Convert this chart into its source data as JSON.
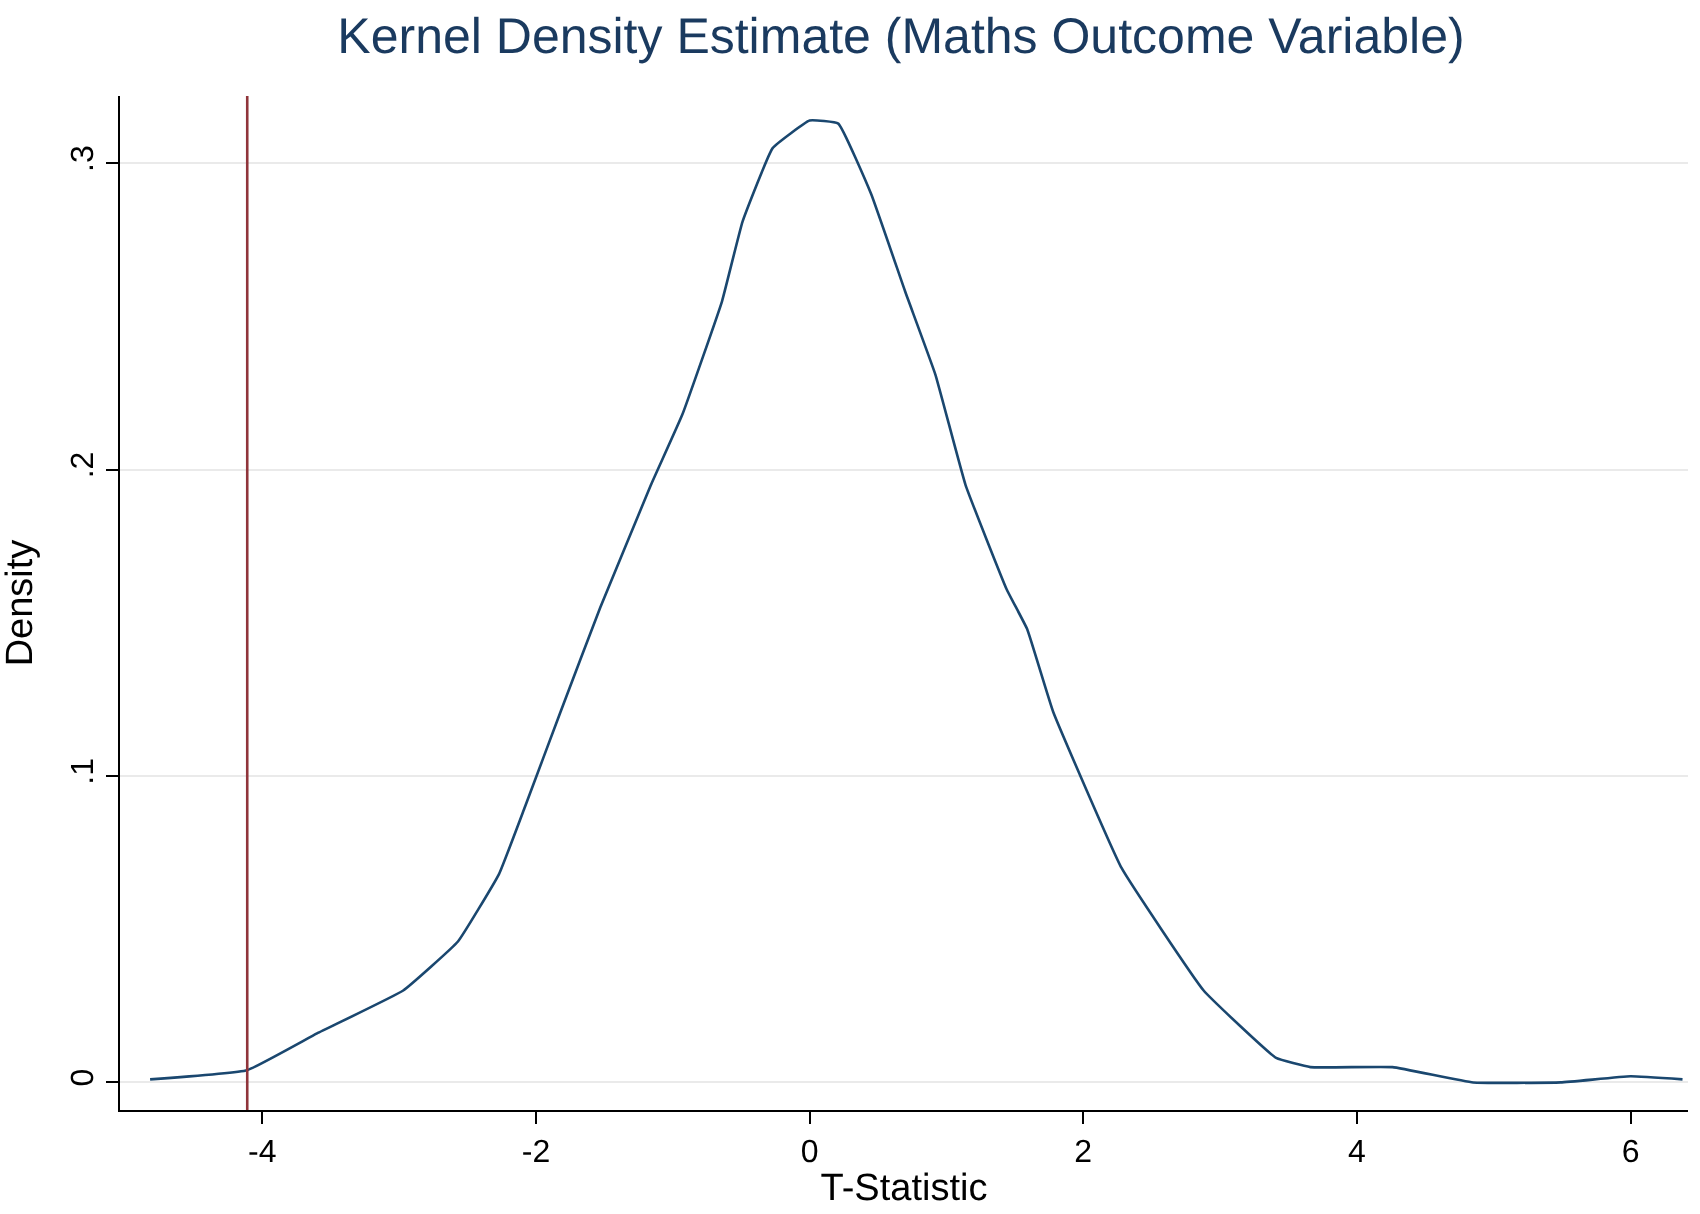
{
  "chart_data": {
    "type": "line",
    "title": "Kernel Density Estimate (Maths Outcome Variable)",
    "xlabel": "T-Statistic",
    "ylabel": "Density",
    "x": [
      -4.82,
      -4.11,
      -3.6,
      -2.97,
      -2.57,
      -2.27,
      -2.08,
      -1.82,
      -1.53,
      -1.16,
      -0.93,
      -0.64,
      -0.49,
      -0.27,
      0.0,
      0.21,
      0.45,
      0.7,
      0.92,
      1.14,
      1.44,
      1.59,
      1.78,
      2.28,
      2.88,
      3.41,
      3.66,
      4.26,
      4.85,
      5.49,
      6.0,
      6.38
    ],
    "series": [
      {
        "color": "#1a476f",
        "values": [
          0.001,
          0.004,
          0.016,
          0.03,
          0.046,
          0.068,
          0.09,
          0.121,
          0.155,
          0.195,
          0.218,
          0.255,
          0.281,
          0.305,
          0.314,
          0.313,
          0.29,
          0.258,
          0.231,
          0.195,
          0.161,
          0.148,
          0.121,
          0.07,
          0.03,
          0.008,
          0.005,
          0.005,
          0.0,
          0.0,
          0.002,
          0.001
        ]
      }
    ],
    "xlim": [
      -5.04,
      6.42
    ],
    "ylim": [
      -0.009,
      0.322
    ],
    "xticks": [
      -4,
      -2,
      0,
      2,
      4,
      6
    ],
    "yticks": [
      0,
      {
        "value": 0.1,
        "label": ".1"
      },
      {
        "value": 0.2,
        "label": ".2"
      },
      {
        "value": 0.3,
        "label": ".3"
      }
    ],
    "ref_lines": [
      {
        "axis": "x",
        "value": -4.11,
        "color": "#90353b"
      }
    ],
    "grid": "y",
    "marker": "none",
    "line_style": "solid"
  }
}
